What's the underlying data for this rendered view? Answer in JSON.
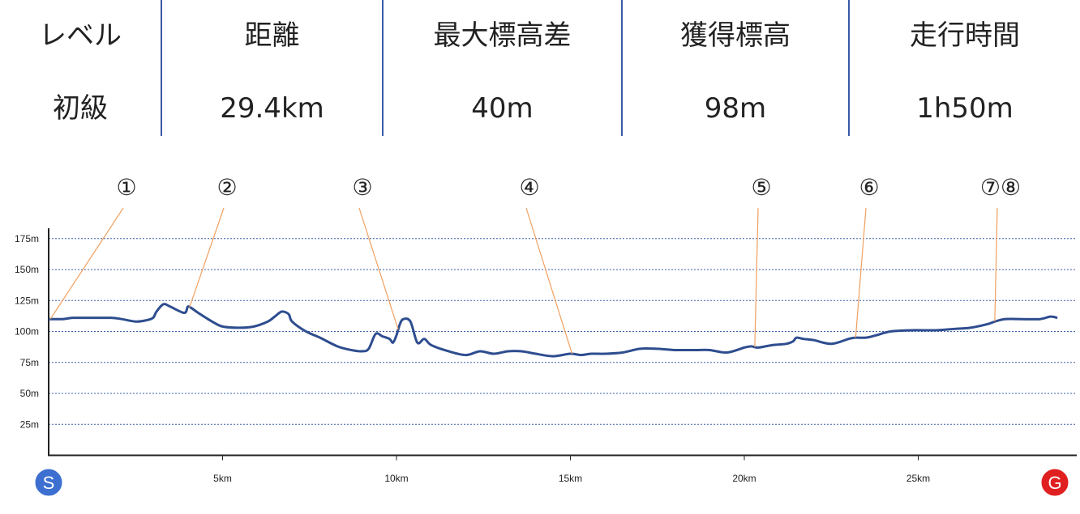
{
  "stats": [
    {
      "label": "レベル",
      "value": "初級"
    },
    {
      "label": "距離",
      "value": "29.4km"
    },
    {
      "label": "最大標高差",
      "value": "40m"
    },
    {
      "label": "獲得標高",
      "value": "98m"
    },
    {
      "label": "走行時間",
      "value": "1h50m"
    }
  ],
  "colors": {
    "line": "#2e4d8f",
    "grid": "#3b5fa8",
    "leader": "#f0a060",
    "divider": "#3a5aa5",
    "start": "#3c6fd0",
    "goal": "#e02020"
  },
  "chart_data": {
    "type": "line",
    "xlim": [
      0,
      29.5
    ],
    "ylim": [
      0,
      185
    ],
    "x_ticks": [
      5,
      10,
      15,
      20,
      25
    ],
    "x_tick_labels": [
      "5km",
      "10km",
      "15km",
      "20km",
      "25km"
    ],
    "y_ticks": [
      25,
      50,
      75,
      100,
      125,
      150,
      175
    ],
    "y_tick_labels": [
      "25m",
      "50m",
      "75m",
      "100m",
      "125m",
      "150m",
      "175m"
    ],
    "grid": true,
    "start_label": "S",
    "goal_label": "G",
    "series": [
      {
        "x": [
          0,
          0.4,
          0.7,
          1.2,
          1.8,
          2.1,
          2.5,
          2.8,
          3.0,
          3.1,
          3.3,
          3.5,
          3.9,
          4.0,
          4.1,
          4.3,
          4.7,
          5.0,
          5.5,
          5.9,
          6.3,
          6.5,
          6.7,
          6.9,
          7.0,
          7.4,
          7.8,
          8.3,
          8.7,
          9.0,
          9.2,
          9.4,
          9.6,
          9.8,
          9.9,
          10.0,
          10.1,
          10.2,
          10.4,
          10.6,
          10.8,
          11.0,
          11.5,
          12.0,
          12.4,
          12.8,
          13.2,
          13.6,
          14.0,
          14.5,
          15.0,
          15.3,
          15.6,
          16.0,
          16.5,
          17.0,
          17.5,
          18.0,
          18.6,
          19.0,
          19.5,
          20.0,
          20.2,
          20.4,
          20.8,
          21.2,
          21.4,
          21.5,
          21.7,
          22.0,
          22.5,
          23.0,
          23.2,
          23.5,
          23.8,
          24.2,
          24.8,
          25.5,
          26.0,
          26.5,
          27.0,
          27.2,
          27.5,
          28.0,
          28.5,
          28.8,
          29.0
        ],
        "y": [
          110,
          110,
          111,
          111,
          111,
          110,
          108,
          109,
          111,
          116,
          122,
          120,
          115,
          120,
          119,
          115,
          108,
          104,
          103,
          104,
          108,
          112,
          116,
          114,
          108,
          100,
          95,
          88,
          85,
          84,
          86,
          98,
          96,
          94,
          91,
          97,
          106,
          110,
          108,
          91,
          94,
          89,
          84,
          81,
          84,
          82,
          84,
          84,
          82,
          80,
          82,
          81,
          82,
          82,
          83,
          86,
          86,
          85,
          85,
          85,
          83,
          87,
          88,
          87,
          89,
          90,
          92,
          95,
          94,
          93,
          90,
          94,
          95,
          95,
          97,
          100,
          101,
          101,
          102,
          103,
          106,
          108,
          110,
          110,
          110,
          112,
          111
        ]
      }
    ],
    "markers": [
      {
        "label": "①",
        "x": 0.05
      },
      {
        "label": "②",
        "x": 4.05
      },
      {
        "label": "③",
        "x": 10.05
      },
      {
        "label": "④",
        "x": 15.05
      },
      {
        "label": "⑤",
        "x": 20.3
      },
      {
        "label": "⑥",
        "x": 23.2
      },
      {
        "label": "⑦⑧",
        "x": 27.2
      }
    ]
  }
}
